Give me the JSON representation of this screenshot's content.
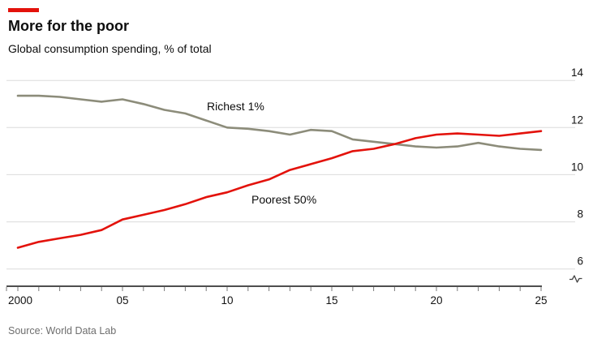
{
  "header": {
    "title": "More for the poor",
    "subtitle": "Global consumption spending, % of total"
  },
  "footer": {
    "source": "Source: World Data Lab"
  },
  "colors": {
    "accent_red": "#e3120b",
    "richest_line": "#8c8c7a",
    "poorest_line": "#e3120b",
    "gridline": "#dcdcdc",
    "axis_line": "#4f4f4f",
    "tick": "#7a7a7a",
    "axis_text": "#121212",
    "label_text": "#0d0d0d",
    "source_text": "#6e6e6e"
  },
  "chart_data": {
    "type": "line",
    "title": "More for the poor",
    "subtitle": "Global consumption spending, % of total",
    "source": "Source: World Data Lab",
    "xlabel": "",
    "ylabel": "% of total",
    "x_years": [
      2000,
      2001,
      2002,
      2003,
      2004,
      2005,
      2006,
      2007,
      2008,
      2009,
      2010,
      2011,
      2012,
      2013,
      2014,
      2015,
      2016,
      2017,
      2018,
      2019,
      2020,
      2021,
      2022,
      2023,
      2024,
      2025
    ],
    "x_tick_labels": [
      {
        "year": 2000,
        "label": "2000"
      },
      {
        "year": 2005,
        "label": "05"
      },
      {
        "year": 2010,
        "label": "10"
      },
      {
        "year": 2015,
        "label": "15"
      },
      {
        "year": 2020,
        "label": "20"
      },
      {
        "year": 2025,
        "label": "25"
      }
    ],
    "y_ticks": [
      6,
      8,
      10,
      12,
      14
    ],
    "ylim": [
      6,
      14
    ],
    "y_axis_side": "right",
    "axis_break": true,
    "grid": "horizontal",
    "legend_position": "inline-labels",
    "series": [
      {
        "name": "Richest 1%",
        "color": "#8c8c7a",
        "values": [
          13.35,
          13.35,
          13.3,
          13.2,
          13.1,
          13.2,
          13.0,
          12.75,
          12.6,
          12.3,
          12.0,
          11.95,
          11.85,
          11.7,
          11.9,
          11.85,
          11.5,
          11.4,
          11.3,
          11.2,
          11.15,
          11.2,
          11.35,
          11.2,
          11.1,
          11.05
        ]
      },
      {
        "name": "Poorest 50%",
        "color": "#e3120b",
        "values": [
          6.9,
          7.15,
          7.3,
          7.45,
          7.65,
          8.1,
          8.3,
          8.5,
          8.75,
          9.05,
          9.25,
          9.55,
          9.8,
          10.2,
          10.45,
          10.7,
          11.0,
          11.1,
          11.3,
          11.55,
          11.7,
          11.75,
          11.7,
          11.65,
          11.75,
          11.85
        ]
      }
    ]
  }
}
